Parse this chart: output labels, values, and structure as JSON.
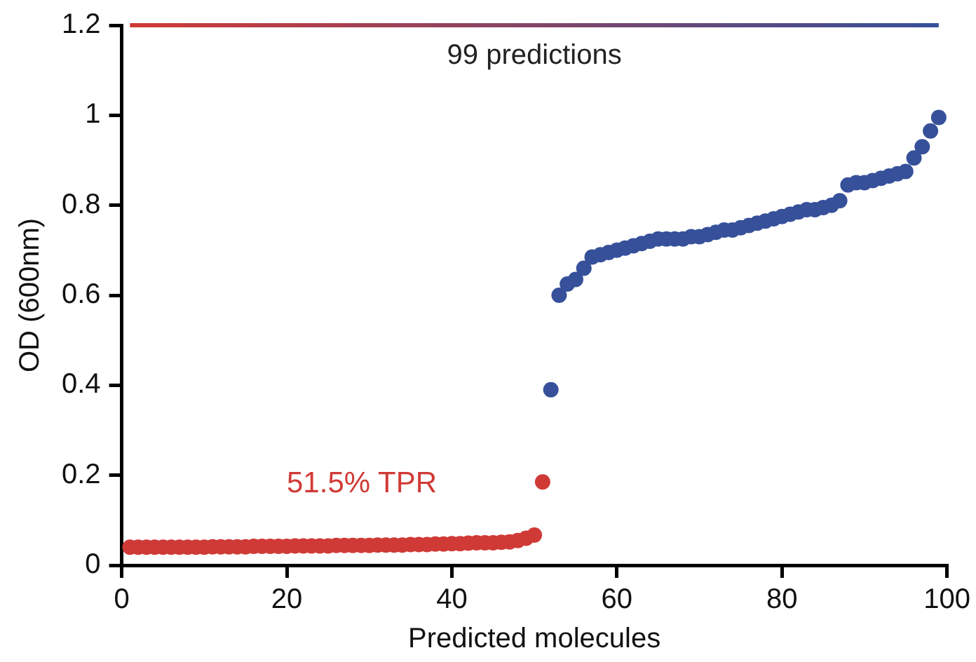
{
  "chart_data": {
    "type": "scatter",
    "xlabel": "Predicted molecules",
    "ylabel": "OD (600nm)",
    "xlim": [
      0,
      100
    ],
    "xticks": [
      0,
      20,
      40,
      60,
      80,
      100
    ],
    "ylim": [
      0,
      1.2
    ],
    "yticks": [
      0,
      0.2,
      0.4,
      0.6,
      0.8,
      1,
      1.2
    ],
    "grid": false,
    "legend": false,
    "marker": "circle",
    "series": [
      {
        "color": "#d03a36",
        "x": [
          1,
          2,
          3,
          4,
          5,
          6,
          7,
          8,
          9,
          10,
          11,
          12,
          13,
          14,
          15,
          16,
          17,
          18,
          19,
          20,
          21,
          22,
          23,
          24,
          25,
          26,
          27,
          28,
          29,
          30,
          31,
          32,
          33,
          34,
          35,
          36,
          37,
          38,
          39,
          40,
          41,
          42,
          43,
          44,
          45,
          46,
          47,
          48,
          49,
          50,
          51
        ],
        "values": [
          0.04,
          0.04,
          0.04,
          0.04,
          0.04,
          0.04,
          0.04,
          0.04,
          0.04,
          0.04,
          0.041,
          0.041,
          0.041,
          0.041,
          0.041,
          0.042,
          0.042,
          0.042,
          0.042,
          0.042,
          0.043,
          0.043,
          0.043,
          0.043,
          0.043,
          0.044,
          0.044,
          0.044,
          0.044,
          0.044,
          0.045,
          0.045,
          0.045,
          0.045,
          0.046,
          0.046,
          0.046,
          0.047,
          0.047,
          0.048,
          0.048,
          0.049,
          0.05,
          0.05,
          0.05,
          0.051,
          0.052,
          0.055,
          0.06,
          0.067,
          0.185
        ]
      },
      {
        "color": "#36509a",
        "x": [
          52,
          53,
          54,
          55,
          56,
          57,
          58,
          59,
          60,
          61,
          62,
          63,
          64,
          65,
          66,
          67,
          68,
          69,
          70,
          71,
          72,
          73,
          74,
          75,
          76,
          77,
          78,
          79,
          80,
          81,
          82,
          83,
          84,
          85,
          86,
          87,
          88,
          89,
          90,
          91,
          92,
          93,
          94,
          95,
          96,
          97,
          98,
          99
        ],
        "values": [
          0.39,
          0.6,
          0.625,
          0.635,
          0.66,
          0.685,
          0.69,
          0.695,
          0.7,
          0.705,
          0.71,
          0.715,
          0.72,
          0.725,
          0.725,
          0.725,
          0.725,
          0.73,
          0.73,
          0.735,
          0.74,
          0.745,
          0.745,
          0.75,
          0.755,
          0.76,
          0.765,
          0.77,
          0.775,
          0.78,
          0.785,
          0.79,
          0.79,
          0.795,
          0.8,
          0.81,
          0.845,
          0.85,
          0.85,
          0.855,
          0.86,
          0.865,
          0.87,
          0.875,
          0.905,
          0.93,
          0.965,
          0.995
        ]
      }
    ],
    "ref_lines": [
      {
        "axis": "y",
        "value": 1.2,
        "label": "99 predictions"
      }
    ],
    "annotations": [
      "51.5% TPR"
    ]
  }
}
